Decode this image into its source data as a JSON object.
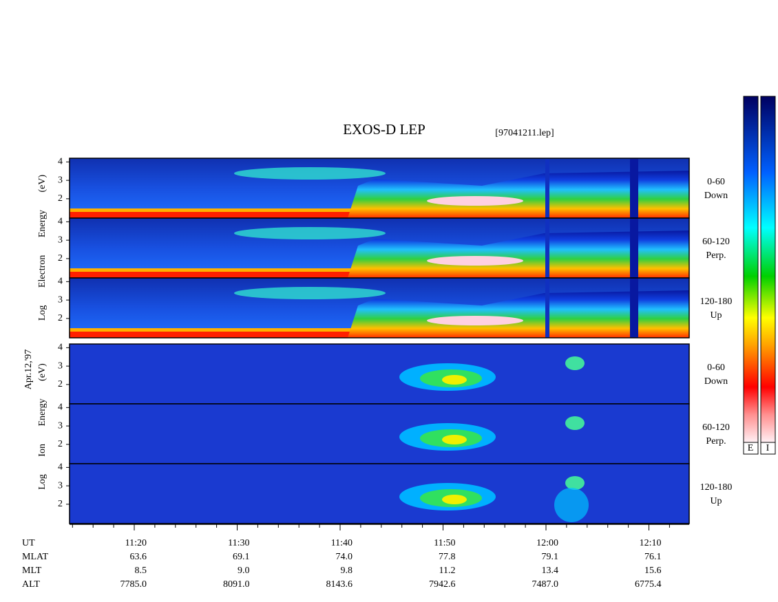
{
  "title": "EXOS-D LEP",
  "file": "[97041211.lep]",
  "date": "Apr.12,'97",
  "electron_axis_label": "Log Electron Energy (eV)",
  "ion_axis_label": "Log Ion Energy (eV)",
  "ylim": [
    0.95,
    4.2
  ],
  "yticks": [
    2,
    3,
    4
  ],
  "panels": [
    {
      "angle": "0-60",
      "direction": "Down"
    },
    {
      "angle": "60-120",
      "direction": "Perp."
    },
    {
      "angle": "120-180",
      "direction": "Up"
    },
    {
      "angle": "0-60",
      "direction": "Down"
    },
    {
      "angle": "60-120",
      "direction": "Perp."
    },
    {
      "angle": "120-180",
      "direction": "Up"
    }
  ],
  "colorbar_labels": [
    "E",
    "I"
  ],
  "ephemeris": {
    "rows": [
      {
        "name": "UT",
        "values": [
          "11:20",
          "11:30",
          "11:40",
          "11:50",
          "12:00",
          "12:10"
        ]
      },
      {
        "name": "MLAT",
        "values": [
          "63.6",
          "69.1",
          "74.0",
          "77.8",
          "79.1",
          "76.1"
        ]
      },
      {
        "name": "MLT",
        "values": [
          "8.5",
          "9.0",
          "9.8",
          "11.2",
          "13.4",
          "15.6"
        ]
      },
      {
        "name": "ALT",
        "values": [
          "7785.0",
          "8091.0",
          "8143.6",
          "7942.6",
          "7487.0",
          "6775.4"
        ]
      }
    ]
  }
}
